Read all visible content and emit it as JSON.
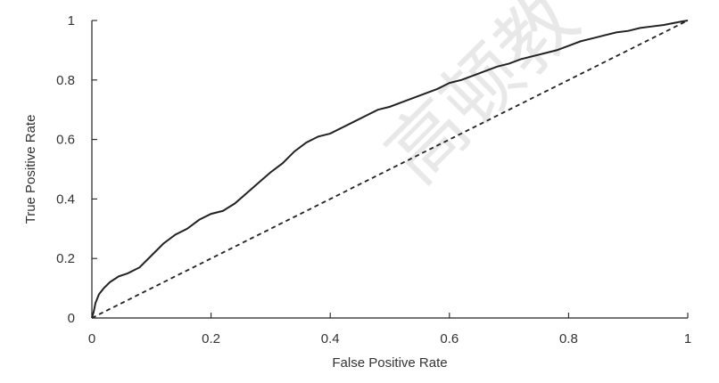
{
  "chart_data": {
    "type": "line",
    "title": "",
    "xlabel": "False Positive Rate",
    "ylabel": "True Positive Rate",
    "xlim": [
      0,
      1
    ],
    "ylim": [
      0,
      1
    ],
    "xticks": [
      "0",
      "0.2",
      "0.4",
      "0.6",
      "0.8",
      "1"
    ],
    "yticks": [
      "0",
      "0.2",
      "0.4",
      "0.6",
      "0.8",
      "1"
    ],
    "grid": false,
    "legend": "none",
    "series": [
      {
        "style": "solid",
        "color": "#222222",
        "x": [
          0,
          0.003,
          0.006,
          0.012,
          0.02,
          0.03,
          0.045,
          0.06,
          0.08,
          0.1,
          0.12,
          0.14,
          0.16,
          0.18,
          0.2,
          0.22,
          0.24,
          0.26,
          0.28,
          0.3,
          0.32,
          0.34,
          0.36,
          0.38,
          0.4,
          0.42,
          0.44,
          0.46,
          0.48,
          0.5,
          0.52,
          0.54,
          0.56,
          0.58,
          0.6,
          0.62,
          0.64,
          0.66,
          0.68,
          0.7,
          0.72,
          0.74,
          0.76,
          0.78,
          0.8,
          0.82,
          0.84,
          0.86,
          0.88,
          0.9,
          0.92,
          0.94,
          0.96,
          0.98,
          1
        ],
        "y": [
          0,
          0.02,
          0.05,
          0.08,
          0.1,
          0.12,
          0.14,
          0.15,
          0.17,
          0.21,
          0.25,
          0.28,
          0.3,
          0.33,
          0.35,
          0.36,
          0.385,
          0.42,
          0.455,
          0.49,
          0.52,
          0.56,
          0.59,
          0.61,
          0.62,
          0.64,
          0.66,
          0.68,
          0.7,
          0.71,
          0.725,
          0.74,
          0.755,
          0.77,
          0.79,
          0.8,
          0.815,
          0.83,
          0.845,
          0.855,
          0.87,
          0.88,
          0.89,
          0.9,
          0.915,
          0.93,
          0.94,
          0.95,
          0.96,
          0.965,
          0.975,
          0.98,
          0.985,
          0.993,
          1
        ]
      },
      {
        "style": "dashed",
        "color": "#222222",
        "x": [
          0,
          1
        ],
        "y": [
          0,
          1
        ]
      }
    ]
  },
  "watermark": {
    "text": "高顿教",
    "color": "#d0d0d0"
  }
}
